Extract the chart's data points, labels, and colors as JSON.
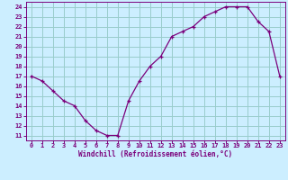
{
  "x": [
    0,
    1,
    2,
    3,
    4,
    5,
    6,
    7,
    8,
    9,
    10,
    11,
    12,
    13,
    14,
    15,
    16,
    17,
    18,
    19,
    20,
    21,
    22,
    23
  ],
  "y": [
    17,
    16.5,
    15.5,
    14.5,
    14,
    12.5,
    11.5,
    11,
    11,
    14.5,
    16.5,
    18,
    19,
    21,
    21.5,
    22,
    23,
    23.5,
    24,
    24,
    24,
    22.5,
    21.5,
    17
  ],
  "line_color": "#7b007b",
  "marker_color": "#7b007b",
  "bg_color": "#cceeff",
  "grid_color": "#99cccc",
  "axis_color": "#7b007b",
  "xlabel": "Windchill (Refroidissement éolien,°C)",
  "ylim": [
    10.5,
    24.5
  ],
  "xlim": [
    -0.5,
    23.5
  ],
  "yticks": [
    11,
    12,
    13,
    14,
    15,
    16,
    17,
    18,
    19,
    20,
    21,
    22,
    23,
    24
  ],
  "xticks": [
    0,
    1,
    2,
    3,
    4,
    5,
    6,
    7,
    8,
    9,
    10,
    11,
    12,
    13,
    14,
    15,
    16,
    17,
    18,
    19,
    20,
    21,
    22,
    23
  ]
}
